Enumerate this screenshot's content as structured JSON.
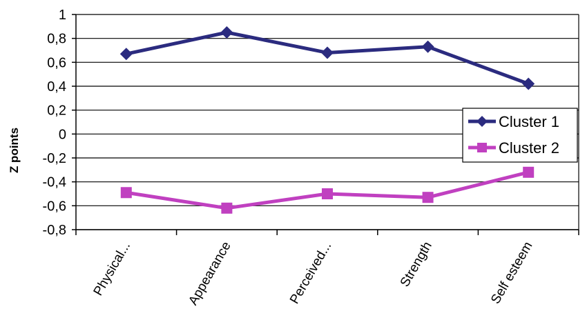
{
  "chart_data": {
    "type": "line",
    "categories": [
      "Physical...",
      "Appearance",
      "Perceived...",
      "Strength",
      "Self esteem"
    ],
    "series": [
      {
        "name": "Cluster 1",
        "values": [
          0.67,
          0.85,
          0.68,
          0.73,
          0.42
        ],
        "color": "#2b2b7f",
        "marker": "diamond"
      },
      {
        "name": "Cluster 2",
        "values": [
          -0.49,
          -0.62,
          -0.5,
          -0.53,
          -0.32
        ],
        "color": "#c040c0",
        "marker": "square"
      }
    ],
    "ylabel": "Z points",
    "xlabel": "",
    "ylim": [
      -0.8,
      1
    ],
    "yticks": [
      1,
      0.8,
      0.6,
      0.4,
      0.2,
      0,
      -0.2,
      -0.4,
      -0.6,
      -0.8
    ],
    "ytick_labels": [
      "1",
      "0,8",
      "0,6",
      "0,4",
      "0,2",
      "0",
      "-0,2",
      "-0,4",
      "-0,6",
      "-0,8"
    ],
    "grid": true,
    "legend_position": "right"
  }
}
